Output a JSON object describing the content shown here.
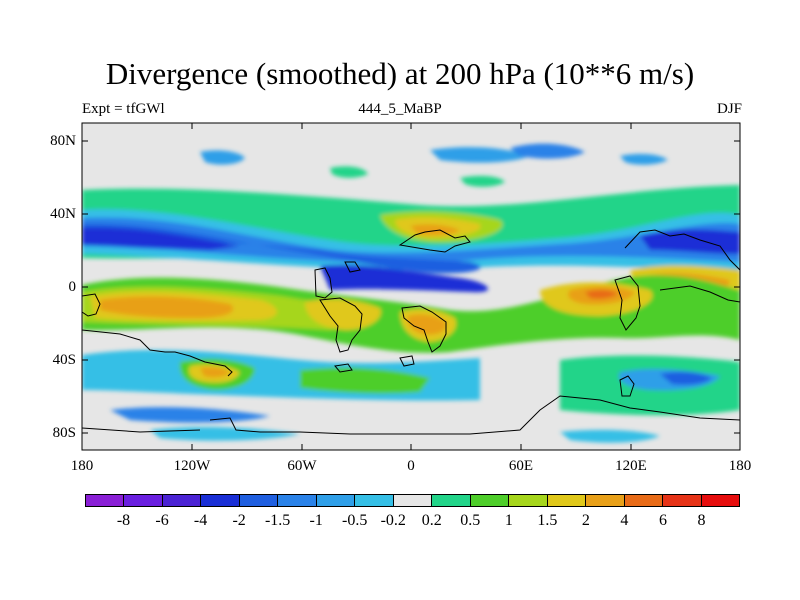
{
  "title": "Divergence (smoothed) at 200 hPa (10**6 m/s)",
  "left_label": "Expt = tfGWl",
  "center_label": "444_5_MaBP",
  "right_label": "DJF",
  "lat_labels": [
    "80N",
    "40N",
    "0",
    "40S",
    "80S"
  ],
  "lon_labels": [
    "180",
    "120W",
    "60W",
    "0",
    "60E",
    "120E",
    "180"
  ],
  "colorbar": {
    "colors": [
      "#8a1fd6",
      "#6a1fe0",
      "#4b23d4",
      "#1a2fd6",
      "#1f5fe0",
      "#2a82e8",
      "#2f9fe8",
      "#35bfe6",
      "#e6e6e6",
      "#22d489",
      "#4ece2a",
      "#a6d61c",
      "#e0c81a",
      "#e8a019",
      "#e86b17",
      "#e63317",
      "#e60d0d"
    ],
    "labels": [
      "-8",
      "-6",
      "-4",
      "-2",
      "-1.5",
      "-1",
      "-0.5",
      "-0.2",
      "0.2",
      "0.5",
      "1",
      "1.5",
      "2",
      "4",
      "6",
      "8"
    ]
  }
}
